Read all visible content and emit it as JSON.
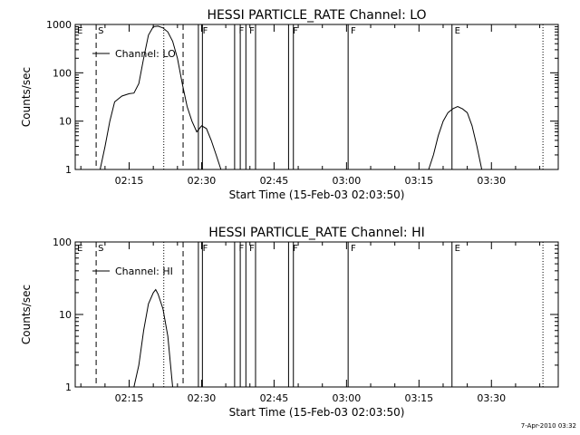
{
  "footer_timestamp": "7-Apr-2010 03:32",
  "chart_data": [
    {
      "type": "line",
      "title": "HESSI PARTICLE_RATE Channel: LO",
      "xlabel": "Start Time (15-Feb-03 02:03:50)",
      "ylabel": "Counts/sec",
      "yscale": "log",
      "ylim": [
        1,
        1000
      ],
      "xlim": [
        "02:03:50",
        "03:43:50"
      ],
      "xticks": [
        "02:15",
        "02:30",
        "02:45",
        "03:00",
        "03:15",
        "03:30"
      ],
      "yticks": [
        "1",
        "10",
        "100",
        "1000"
      ],
      "legend": "Channel: LO",
      "legend_position": "top-left",
      "flag_labels": [
        {
          "text": "E",
          "time": "02:03:50"
        },
        {
          "text": "S",
          "time": "02:08:10"
        },
        {
          "text": "F",
          "time": "02:29:50"
        },
        {
          "text": "F",
          "time": "02:37:20"
        },
        {
          "text": "F",
          "time": "02:39:30"
        },
        {
          "text": "F",
          "time": "02:48:30"
        },
        {
          "text": "F",
          "time": "03:00:30"
        },
        {
          "text": "E",
          "time": "03:22:00"
        }
      ],
      "series": [
        {
          "name": "Channel: LO",
          "points": [
            [
              "02:09:00",
              1
            ],
            [
              "02:10:00",
              3
            ],
            [
              "02:11:00",
              10
            ],
            [
              "02:12:00",
              25
            ],
            [
              "02:13:30",
              33
            ],
            [
              "02:15:00",
              37
            ],
            [
              "02:16:00",
              38
            ],
            [
              "02:17:00",
              60
            ],
            [
              "02:18:00",
              200
            ],
            [
              "02:19:00",
              600
            ],
            [
              "02:20:00",
              900
            ],
            [
              "02:21:00",
              920
            ],
            [
              "02:22:00",
              850
            ],
            [
              "02:23:00",
              700
            ],
            [
              "02:24:00",
              450
            ],
            [
              "02:25:00",
              200
            ],
            [
              "02:26:00",
              60
            ],
            [
              "02:27:00",
              20
            ],
            [
              "02:28:00",
              10
            ],
            [
              "02:29:00",
              6
            ],
            [
              "02:30:00",
              8
            ],
            [
              "02:31:00",
              7
            ],
            [
              "02:32:00",
              4
            ],
            [
              "02:33:00",
              2
            ],
            [
              "02:34:00",
              1
            ]
          ]
        },
        {
          "name": "Channel: LO",
          "points": [
            [
              "03:17:00",
              1
            ],
            [
              "03:18:00",
              2
            ],
            [
              "03:19:00",
              5
            ],
            [
              "03:20:00",
              10
            ],
            [
              "03:21:00",
              15
            ],
            [
              "03:22:00",
              18
            ],
            [
              "03:23:00",
              20
            ],
            [
              "03:24:00",
              18
            ],
            [
              "03:25:00",
              15
            ],
            [
              "03:26:00",
              8
            ],
            [
              "03:27:00",
              3
            ],
            [
              "03:28:00",
              1
            ]
          ]
        }
      ],
      "vertical_lines": [
        {
          "time": "02:08:10",
          "style": "dashed"
        },
        {
          "time": "02:22:10",
          "style": "dotted"
        },
        {
          "time": "02:26:10",
          "style": "dashed"
        },
        {
          "time": "02:29:20",
          "style": "solid"
        },
        {
          "time": "02:30:10",
          "style": "solid"
        },
        {
          "time": "02:36:50",
          "style": "solid"
        },
        {
          "time": "02:38:00",
          "style": "solid"
        },
        {
          "time": "02:39:10",
          "style": "solid"
        },
        {
          "time": "02:41:10",
          "style": "solid"
        },
        {
          "time": "02:48:00",
          "style": "solid"
        },
        {
          "time": "02:49:00",
          "style": "solid"
        },
        {
          "time": "03:00:20",
          "style": "solid"
        },
        {
          "time": "03:21:50",
          "style": "solid"
        },
        {
          "time": "03:40:40",
          "style": "dotted"
        }
      ]
    },
    {
      "type": "line",
      "title": "HESSI PARTICLE_RATE Channel: HI",
      "xlabel": "Start Time (15-Feb-03 02:03:50)",
      "ylabel": "Counts/sec",
      "yscale": "log",
      "ylim": [
        1,
        100
      ],
      "xlim": [
        "02:03:50",
        "03:43:50"
      ],
      "xticks": [
        "02:15",
        "02:30",
        "02:45",
        "03:00",
        "03:15",
        "03:30"
      ],
      "yticks": [
        "1",
        "10",
        "100"
      ],
      "legend": "Channel: HI",
      "legend_position": "top-left",
      "flag_labels": [
        {
          "text": "E",
          "time": "02:03:50"
        },
        {
          "text": "S",
          "time": "02:08:10"
        },
        {
          "text": "F",
          "time": "02:29:50"
        },
        {
          "text": "F",
          "time": "02:37:20"
        },
        {
          "text": "F",
          "time": "02:39:30"
        },
        {
          "text": "F",
          "time": "02:48:30"
        },
        {
          "text": "F",
          "time": "03:00:30"
        },
        {
          "text": "E",
          "time": "03:22:00"
        }
      ],
      "series": [
        {
          "name": "Channel: HI",
          "points": [
            [
              "02:16:00",
              1
            ],
            [
              "02:17:00",
              2
            ],
            [
              "02:18:00",
              6
            ],
            [
              "02:19:00",
              14
            ],
            [
              "02:20:00",
              20
            ],
            [
              "02:20:30",
              22
            ],
            [
              "02:21:00",
              19
            ],
            [
              "02:22:00",
              12
            ],
            [
              "02:23:00",
              5
            ],
            [
              "02:24:00",
              1
            ]
          ]
        }
      ],
      "vertical_lines": [
        {
          "time": "02:08:10",
          "style": "dashed"
        },
        {
          "time": "02:22:10",
          "style": "dotted"
        },
        {
          "time": "02:26:10",
          "style": "dashed"
        },
        {
          "time": "02:29:20",
          "style": "solid"
        },
        {
          "time": "02:30:10",
          "style": "solid"
        },
        {
          "time": "02:36:50",
          "style": "solid"
        },
        {
          "time": "02:38:00",
          "style": "solid"
        },
        {
          "time": "02:39:10",
          "style": "solid"
        },
        {
          "time": "02:41:10",
          "style": "solid"
        },
        {
          "time": "02:48:00",
          "style": "solid"
        },
        {
          "time": "02:49:00",
          "style": "solid"
        },
        {
          "time": "03:00:20",
          "style": "solid"
        },
        {
          "time": "03:21:50",
          "style": "solid"
        },
        {
          "time": "03:40:40",
          "style": "dotted"
        }
      ]
    }
  ]
}
